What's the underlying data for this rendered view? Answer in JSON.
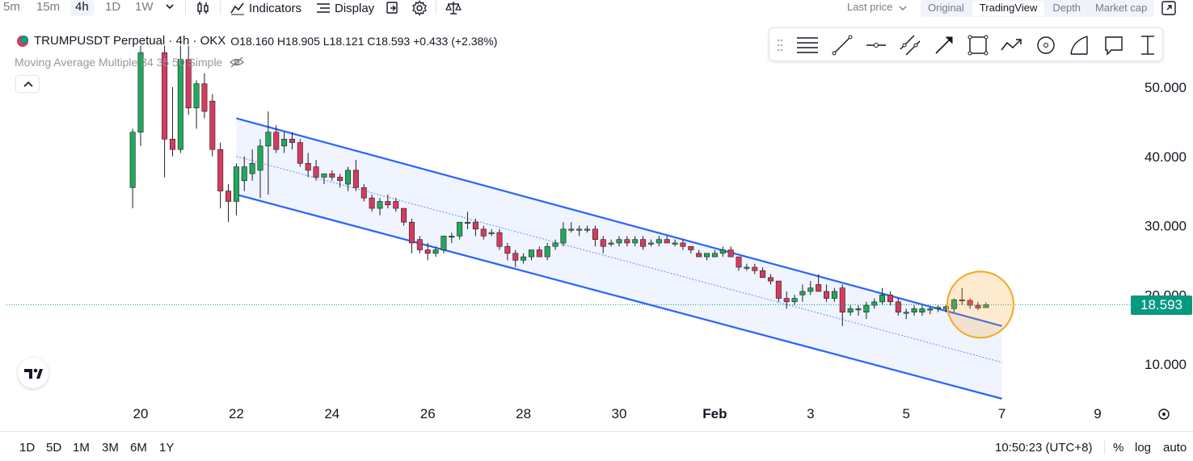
{
  "toolbar": {
    "timeframes": [
      {
        "label": "5m",
        "active": false
      },
      {
        "label": "15m",
        "active": false
      },
      {
        "label": "4h",
        "active": true
      },
      {
        "label": "1D",
        "active": false
      },
      {
        "label": "1W",
        "active": false
      }
    ],
    "indicators_label": "Indicators",
    "display_label": "Display",
    "last_price_label": "Last price",
    "view_tabs": [
      {
        "label": "Original",
        "selected": false
      },
      {
        "label": "TradingView",
        "selected": true
      },
      {
        "label": "Depth",
        "selected": false
      },
      {
        "label": "Market cap",
        "selected": false
      }
    ]
  },
  "legend": {
    "symbol": "TRUMPUSDT Perpetual · 4h · OKX",
    "o_label": "O",
    "open": "18.160",
    "h_label": "H",
    "high": "18.905",
    "l_label": "L",
    "low": "18.121",
    "c_label": "C",
    "close": "18.593",
    "change": "+0.433 (+2.38%)",
    "indicator": "Moving Average Multiple 34 35 50 Simple"
  },
  "price_tag": "18.593",
  "colors": {
    "up": "#22a85a",
    "down": "#d63b5e",
    "channel": "#2962ff",
    "channel_fill": "#eaf0fd",
    "highlight": "#f6a623",
    "price_line": "#089981"
  },
  "bottom": {
    "ranges": [
      "1D",
      "5D",
      "1M",
      "3M",
      "6M",
      "1Y"
    ],
    "clock": "10:50:23 (UTC+8)",
    "percent": "%",
    "log": "log",
    "auto": "auto"
  },
  "chart_data": {
    "type": "candlestick",
    "title": "TRUMPUSDT Perpetual · 4h · OKX",
    "x_ticks": [
      "20",
      "22",
      "24",
      "26",
      "28",
      "30",
      "Feb",
      "3",
      "5",
      "7",
      "9"
    ],
    "y_ticks": [
      "50.000",
      "40.000",
      "30.000",
      "20.000",
      "10.000"
    ],
    "ylim": [
      4.5,
      55
    ],
    "last_price": 18.593,
    "candles": [
      {
        "t": "Jan 19 20:00",
        "o": 35.5,
        "h": 44.0,
        "l": 32.5,
        "c": 43.5
      },
      {
        "t": "Jan 20 00:00",
        "o": 43.5,
        "h": 56.0,
        "l": 41.5,
        "c": 55.0
      },
      {
        "t": "Jan 20 12:00",
        "o": 55.0,
        "h": 56.0,
        "l": 37.0,
        "c": 42.5
      },
      {
        "t": "Jan 20 16:00",
        "o": 42.5,
        "h": 50.0,
        "l": 40.0,
        "c": 41.0
      },
      {
        "t": "Jan 20 20:00",
        "o": 41.0,
        "h": 56.0,
        "l": 40.5,
        "c": 54.0
      },
      {
        "t": "Jan 21 00:00",
        "o": 54.0,
        "h": 56.0,
        "l": 46.0,
        "c": 47.0
      },
      {
        "t": "Jan 21 04:00",
        "o": 47.0,
        "h": 51.0,
        "l": 44.0,
        "c": 50.5
      },
      {
        "t": "Jan 21 08:00",
        "o": 50.5,
        "h": 52.0,
        "l": 45.5,
        "c": 46.5
      },
      {
        "t": "Jan 21 12:00",
        "o": 48.0,
        "h": 49.0,
        "l": 40.0,
        "c": 41.0
      },
      {
        "t": "Jan 21 16:00",
        "o": 41.0,
        "h": 42.0,
        "l": 32.5,
        "c": 35.0
      },
      {
        "t": "Jan 21 20:00",
        "o": 35.0,
        "h": 36.0,
        "l": 30.5,
        "c": 33.5
      },
      {
        "t": "Jan 22 00:00",
        "o": 33.5,
        "h": 39.0,
        "l": 31.5,
        "c": 38.5
      },
      {
        "t": "Jan 22 04:00",
        "o": 36.5,
        "h": 40.0,
        "l": 35.0,
        "c": 38.5
      },
      {
        "t": "Jan 22 08:00",
        "o": 37.5,
        "h": 41.0,
        "l": 36.5,
        "c": 39.0
      },
      {
        "t": "Jan 22 12:00",
        "o": 38.0,
        "h": 42.5,
        "l": 34.0,
        "c": 41.5
      },
      {
        "t": "Jan 22 16:00",
        "o": 41.5,
        "h": 46.5,
        "l": 34.5,
        "c": 43.5
      },
      {
        "t": "Jan 22 20:00",
        "o": 43.5,
        "h": 44.5,
        "l": 40.5,
        "c": 41.0
      },
      {
        "t": "Jan 23 00:00",
        "o": 41.5,
        "h": 43.5,
        "l": 40.5,
        "c": 42.5
      },
      {
        "t": "Jan 23 04:00",
        "o": 42.5,
        "h": 43.5,
        "l": 41.0,
        "c": 42.0
      },
      {
        "t": "Jan 23 08:00",
        "o": 42.0,
        "h": 42.5,
        "l": 38.5,
        "c": 39.0
      },
      {
        "t": "Jan 23 12:00",
        "o": 39.0,
        "h": 40.5,
        "l": 37.0,
        "c": 38.0
      },
      {
        "t": "Jan 23 16:00",
        "o": 38.5,
        "h": 39.5,
        "l": 36.5,
        "c": 37.0
      },
      {
        "t": "Jan 23 20:00",
        "o": 37.0,
        "h": 37.5,
        "l": 36.0,
        "c": 37.5
      },
      {
        "t": "Jan 24 00:00",
        "o": 37.5,
        "h": 38.0,
        "l": 36.5,
        "c": 37.0
      },
      {
        "t": "Jan 24 04:00",
        "o": 37.0,
        "h": 37.5,
        "l": 35.5,
        "c": 36.5
      },
      {
        "t": "Jan 24 08:00",
        "o": 36.0,
        "h": 38.5,
        "l": 35.0,
        "c": 38.0
      },
      {
        "t": "Jan 24 12:00",
        "o": 38.0,
        "h": 39.5,
        "l": 35.0,
        "c": 35.5
      },
      {
        "t": "Jan 24 16:00",
        "o": 35.5,
        "h": 36.0,
        "l": 33.5,
        "c": 34.0
      },
      {
        "t": "Jan 24 20:00",
        "o": 34.0,
        "h": 34.5,
        "l": 32.0,
        "c": 32.5
      },
      {
        "t": "Jan 25 00:00",
        "o": 32.5,
        "h": 34.0,
        "l": 31.5,
        "c": 33.5
      },
      {
        "t": "Jan 25 04:00",
        "o": 33.5,
        "h": 34.5,
        "l": 32.5,
        "c": 33.0
      },
      {
        "t": "Jan 25 08:00",
        "o": 33.5,
        "h": 34.0,
        "l": 32.0,
        "c": 32.5
      },
      {
        "t": "Jan 25 12:00",
        "o": 32.5,
        "h": 32.5,
        "l": 30.0,
        "c": 30.5
      },
      {
        "t": "Jan 25 16:00",
        "o": 30.5,
        "h": 31.0,
        "l": 26.0,
        "c": 27.5
      },
      {
        "t": "Jan 25 20:00",
        "o": 28.0,
        "h": 28.5,
        "l": 26.0,
        "c": 26.5
      },
      {
        "t": "Jan 26 00:00",
        "o": 26.5,
        "h": 27.5,
        "l": 25.0,
        "c": 26.0
      },
      {
        "t": "Jan 26 04:00",
        "o": 26.0,
        "h": 27.0,
        "l": 25.5,
        "c": 26.5
      },
      {
        "t": "Jan 26 08:00",
        "o": 26.5,
        "h": 28.5,
        "l": 26.0,
        "c": 28.5
      },
      {
        "t": "Jan 26 12:00",
        "o": 28.5,
        "h": 29.0,
        "l": 27.5,
        "c": 28.5
      },
      {
        "t": "Jan 26 16:00",
        "o": 28.5,
        "h": 30.5,
        "l": 28.0,
        "c": 30.5
      },
      {
        "t": "Jan 26 20:00",
        "o": 30.5,
        "h": 32.0,
        "l": 29.5,
        "c": 30.5
      },
      {
        "t": "Jan 27 00:00",
        "o": 30.5,
        "h": 31.0,
        "l": 28.5,
        "c": 29.5
      },
      {
        "t": "Jan 27 04:00",
        "o": 29.5,
        "h": 30.0,
        "l": 28.0,
        "c": 28.5
      },
      {
        "t": "Jan 27 08:00",
        "o": 29.0,
        "h": 29.5,
        "l": 28.5,
        "c": 29.0
      },
      {
        "t": "Jan 27 12:00",
        "o": 29.0,
        "h": 29.5,
        "l": 26.5,
        "c": 27.0
      },
      {
        "t": "Jan 27 16:00",
        "o": 27.0,
        "h": 27.5,
        "l": 25.0,
        "c": 26.0
      },
      {
        "t": "Jan 27 20:00",
        "o": 26.0,
        "h": 26.5,
        "l": 24.0,
        "c": 25.0
      },
      {
        "t": "Jan 28 00:00",
        "o": 25.0,
        "h": 26.0,
        "l": 24.5,
        "c": 25.5
      },
      {
        "t": "Jan 28 04:00",
        "o": 25.5,
        "h": 26.5,
        "l": 25.0,
        "c": 26.5
      },
      {
        "t": "Jan 28 08:00",
        "o": 26.5,
        "h": 27.0,
        "l": 25.5,
        "c": 25.5
      },
      {
        "t": "Jan 28 12:00",
        "o": 25.5,
        "h": 27.5,
        "l": 25.0,
        "c": 27.0
      },
      {
        "t": "Jan 28 16:00",
        "o": 27.0,
        "h": 28.0,
        "l": 26.5,
        "c": 27.5
      },
      {
        "t": "Jan 28 20:00",
        "o": 27.5,
        "h": 30.5,
        "l": 27.0,
        "c": 29.5
      },
      {
        "t": "Jan 29 00:00",
        "o": 29.5,
        "h": 30.5,
        "l": 29.0,
        "c": 29.5
      },
      {
        "t": "Jan 29 04:00",
        "o": 29.5,
        "h": 30.0,
        "l": 28.5,
        "c": 29.5
      },
      {
        "t": "Jan 29 08:00",
        "o": 29.5,
        "h": 30.0,
        "l": 29.0,
        "c": 29.5
      },
      {
        "t": "Jan 29 12:00",
        "o": 29.5,
        "h": 30.0,
        "l": 27.0,
        "c": 28.0
      },
      {
        "t": "Jan 29 16:00",
        "o": 28.0,
        "h": 28.5,
        "l": 26.0,
        "c": 27.0
      },
      {
        "t": "Jan 29 20:00",
        "o": 27.5,
        "h": 28.0,
        "l": 27.0,
        "c": 27.5
      },
      {
        "t": "Jan 30 00:00",
        "o": 27.5,
        "h": 28.5,
        "l": 27.0,
        "c": 28.0
      },
      {
        "t": "Jan 30 04:00",
        "o": 28.0,
        "h": 28.5,
        "l": 27.0,
        "c": 27.5
      },
      {
        "t": "Jan 30 08:00",
        "o": 27.5,
        "h": 28.5,
        "l": 27.0,
        "c": 28.0
      },
      {
        "t": "Jan 30 12:00",
        "o": 28.0,
        "h": 28.5,
        "l": 26.5,
        "c": 27.0
      },
      {
        "t": "Jan 30 16:00",
        "o": 27.5,
        "h": 28.0,
        "l": 27.0,
        "c": 27.5
      },
      {
        "t": "Jan 30 20:00",
        "o": 27.5,
        "h": 28.5,
        "l": 27.0,
        "c": 28.0
      },
      {
        "t": "Jan 31 00:00",
        "o": 28.0,
        "h": 28.5,
        "l": 27.5,
        "c": 27.5
      },
      {
        "t": "Jan 31 04:00",
        "o": 27.5,
        "h": 28.0,
        "l": 27.0,
        "c": 27.5
      },
      {
        "t": "Jan 31 08:00",
        "o": 27.5,
        "h": 28.0,
        "l": 26.5,
        "c": 27.0
      },
      {
        "t": "Jan 31 12:00",
        "o": 27.0,
        "h": 27.0,
        "l": 26.0,
        "c": 26.5
      },
      {
        "t": "Jan 31 16:00",
        "o": 26.0,
        "h": 26.5,
        "l": 25.5,
        "c": 25.5
      },
      {
        "t": "Jan 31 20:00",
        "o": 25.5,
        "h": 26.0,
        "l": 25.0,
        "c": 26.0
      },
      {
        "t": "Feb 1 00:00",
        "o": 25.5,
        "h": 26.5,
        "l": 25.5,
        "c": 26.0
      },
      {
        "t": "Feb 1 04:00",
        "o": 26.0,
        "h": 27.0,
        "l": 25.5,
        "c": 26.5
      },
      {
        "t": "Feb 1 08:00",
        "o": 26.5,
        "h": 27.0,
        "l": 25.5,
        "c": 25.5
      },
      {
        "t": "Feb 1 12:00",
        "o": 25.5,
        "h": 25.5,
        "l": 23.5,
        "c": 24.0
      },
      {
        "t": "Feb 1 16:00",
        "o": 24.0,
        "h": 24.5,
        "l": 23.5,
        "c": 24.0
      },
      {
        "t": "Feb 1 20:00",
        "o": 24.0,
        "h": 24.5,
        "l": 23.0,
        "c": 23.5
      },
      {
        "t": "Feb 2 00:00",
        "o": 23.5,
        "h": 24.0,
        "l": 22.5,
        "c": 22.5
      },
      {
        "t": "Feb 2 04:00",
        "o": 22.5,
        "h": 23.0,
        "l": 21.5,
        "c": 22.0
      },
      {
        "t": "Feb 2 08:00",
        "o": 22.0,
        "h": 22.0,
        "l": 19.0,
        "c": 19.5
      },
      {
        "t": "Feb 2 12:00",
        "o": 19.5,
        "h": 20.5,
        "l": 18.0,
        "c": 19.0
      },
      {
        "t": "Feb 2 16:00",
        "o": 19.0,
        "h": 20.0,
        "l": 18.5,
        "c": 19.5
      },
      {
        "t": "Feb 2 20:00",
        "o": 20.0,
        "h": 21.5,
        "l": 19.0,
        "c": 20.5
      },
      {
        "t": "Feb 3 00:00",
        "o": 20.5,
        "h": 22.0,
        "l": 20.0,
        "c": 21.0
      },
      {
        "t": "Feb 3 04:00",
        "o": 21.5,
        "h": 23.0,
        "l": 20.5,
        "c": 20.5
      },
      {
        "t": "Feb 3 08:00",
        "o": 20.5,
        "h": 21.5,
        "l": 19.0,
        "c": 19.5
      },
      {
        "t": "Feb 3 12:00",
        "o": 19.5,
        "h": 21.0,
        "l": 19.0,
        "c": 20.5
      },
      {
        "t": "Feb 3 16:00",
        "o": 21.0,
        "h": 21.5,
        "l": 15.5,
        "c": 17.5
      },
      {
        "t": "Feb 3 20:00",
        "o": 17.5,
        "h": 18.5,
        "l": 17.0,
        "c": 18.0
      },
      {
        "t": "Feb 4 00:00",
        "o": 18.0,
        "h": 18.5,
        "l": 17.0,
        "c": 18.0
      },
      {
        "t": "Feb 4 04:00",
        "o": 17.5,
        "h": 19.0,
        "l": 16.5,
        "c": 18.5
      },
      {
        "t": "Feb 4 08:00",
        "o": 18.5,
        "h": 19.5,
        "l": 18.0,
        "c": 19.0
      },
      {
        "t": "Feb 4 12:00",
        "o": 19.0,
        "h": 21.0,
        "l": 18.5,
        "c": 20.0
      },
      {
        "t": "Feb 4 16:00",
        "o": 20.0,
        "h": 20.5,
        "l": 18.5,
        "c": 19.0
      },
      {
        "t": "Feb 4 20:00",
        "o": 19.0,
        "h": 19.5,
        "l": 17.0,
        "c": 17.5
      },
      {
        "t": "Feb 5 00:00",
        "o": 17.5,
        "h": 18.0,
        "l": 16.5,
        "c": 17.5
      },
      {
        "t": "Feb 5 04:00",
        "o": 17.5,
        "h": 18.5,
        "l": 17.0,
        "c": 18.0
      },
      {
        "t": "Feb 5 08:00",
        "o": 17.5,
        "h": 18.5,
        "l": 17.0,
        "c": 18.0
      },
      {
        "t": "Feb 5 12:00",
        "o": 17.8,
        "h": 18.3,
        "l": 17.2,
        "c": 18.0
      },
      {
        "t": "Feb 5 16:00",
        "o": 18.0,
        "h": 18.5,
        "l": 17.5,
        "c": 18.2
      },
      {
        "t": "Feb 5 20:00",
        "o": 18.0,
        "h": 18.5,
        "l": 17.5,
        "c": 18.3
      },
      {
        "t": "Feb 6 00:00",
        "o": 18.0,
        "h": 19.5,
        "l": 17.5,
        "c": 19.3
      },
      {
        "t": "Feb 6 04:00",
        "o": 19.3,
        "h": 21.0,
        "l": 18.5,
        "c": 19.2
      },
      {
        "t": "Feb 6 08:00",
        "o": 19.2,
        "h": 19.5,
        "l": 18.0,
        "c": 18.5
      },
      {
        "t": "Feb 6 12:00",
        "o": 18.5,
        "h": 19.0,
        "l": 17.8,
        "c": 18.1
      },
      {
        "t": "Feb 6 16:00",
        "o": 18.16,
        "h": 18.905,
        "l": 18.121,
        "c": 18.593
      }
    ],
    "channel": {
      "upper": {
        "from": {
          "t": "Jan 22 00:00",
          "v": 45.5
        },
        "to": {
          "t": "Feb 7 00:00",
          "v": 15.5
        }
      },
      "lower": {
        "from": {
          "t": "Jan 22 00:00",
          "v": 34.5
        },
        "to": {
          "t": "Feb 7 00:00",
          "v": 5.0
        }
      }
    }
  }
}
